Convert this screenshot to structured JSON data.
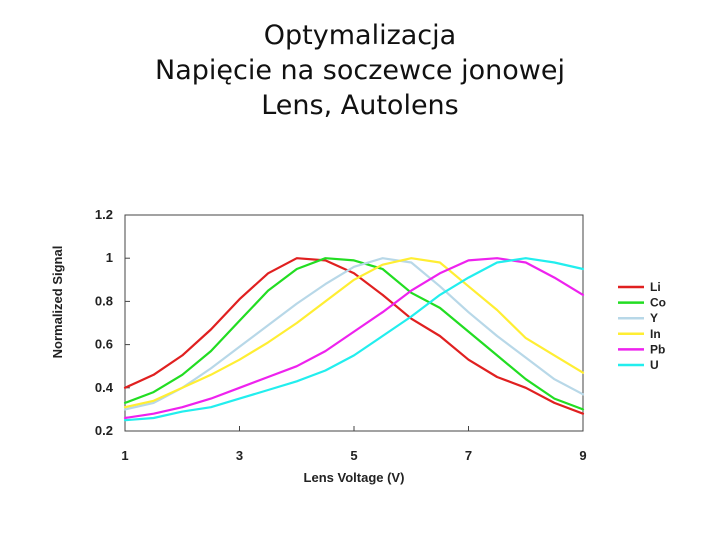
{
  "title": {
    "line1": "Optymalizacja",
    "line2": "Napięcie na soczewce jonowej",
    "line3": "Lens, Autolens"
  },
  "chart_data": {
    "type": "line",
    "xlabel": "Lens Voltage (V)",
    "ylabel": "Normalized Signal",
    "xlim": [
      1,
      9
    ],
    "ylim": [
      0.2,
      1.2
    ],
    "xticks": [
      1,
      3,
      5,
      7,
      9
    ],
    "yticks": [
      0.2,
      0.4,
      0.6,
      0.8,
      1,
      1.2
    ],
    "ytick_labels": [
      "0.2",
      "0.4",
      "0.6",
      "0.8",
      "1",
      "1.2"
    ],
    "grid": false,
    "legend_position": "right",
    "series": [
      {
        "name": "Li",
        "color": "#e02020",
        "x": [
          1,
          1.5,
          2,
          2.5,
          3,
          3.5,
          4,
          4.5,
          5,
          5.5,
          6,
          6.5,
          7,
          7.5,
          8,
          8.5,
          9
        ],
        "y": [
          0.4,
          0.46,
          0.55,
          0.67,
          0.81,
          0.93,
          1.0,
          0.99,
          0.93,
          0.83,
          0.72,
          0.64,
          0.53,
          0.45,
          0.4,
          0.33,
          0.28
        ]
      },
      {
        "name": "Co",
        "color": "#22dd22",
        "x": [
          1,
          1.5,
          2,
          2.5,
          3,
          3.5,
          4,
          4.5,
          5,
          5.5,
          6,
          6.5,
          7,
          7.5,
          8,
          8.5,
          9
        ],
        "y": [
          0.33,
          0.38,
          0.46,
          0.57,
          0.71,
          0.85,
          0.95,
          1.0,
          0.99,
          0.95,
          0.84,
          0.77,
          0.66,
          0.55,
          0.44,
          0.35,
          0.3
        ]
      },
      {
        "name": "Y",
        "color": "#b8d8e8",
        "x": [
          1,
          1.5,
          2,
          2.5,
          3,
          3.5,
          4,
          4.5,
          5,
          5.5,
          6,
          6.5,
          7,
          7.5,
          8,
          8.5,
          9
        ],
        "y": [
          0.3,
          0.33,
          0.4,
          0.49,
          0.59,
          0.69,
          0.79,
          0.88,
          0.96,
          1.0,
          0.98,
          0.87,
          0.75,
          0.64,
          0.54,
          0.44,
          0.37
        ]
      },
      {
        "name": "In",
        "color": "#ffee33",
        "x": [
          1,
          1.5,
          2,
          2.5,
          3,
          3.5,
          4,
          4.5,
          5,
          5.5,
          6,
          6.5,
          7,
          7.5,
          8,
          8.5,
          9
        ],
        "y": [
          0.31,
          0.34,
          0.4,
          0.46,
          0.53,
          0.61,
          0.7,
          0.8,
          0.9,
          0.97,
          1.0,
          0.98,
          0.87,
          0.76,
          0.63,
          0.55,
          0.47
        ]
      },
      {
        "name": "Pb",
        "color": "#ee22ee",
        "x": [
          1,
          1.5,
          2,
          2.5,
          3,
          3.5,
          4,
          4.5,
          5,
          5.5,
          6,
          6.5,
          7,
          7.5,
          8,
          8.5,
          9
        ],
        "y": [
          0.26,
          0.28,
          0.31,
          0.35,
          0.4,
          0.45,
          0.5,
          0.57,
          0.66,
          0.75,
          0.85,
          0.93,
          0.99,
          1.0,
          0.98,
          0.91,
          0.83
        ]
      },
      {
        "name": "U",
        "color": "#22eeee",
        "x": [
          1,
          1.5,
          2,
          2.5,
          3,
          3.5,
          4,
          4.5,
          5,
          5.5,
          6,
          6.5,
          7,
          7.5,
          8,
          8.5,
          9
        ],
        "y": [
          0.25,
          0.26,
          0.29,
          0.31,
          0.35,
          0.39,
          0.43,
          0.48,
          0.55,
          0.64,
          0.73,
          0.83,
          0.91,
          0.98,
          1.0,
          0.98,
          0.95
        ]
      }
    ]
  }
}
